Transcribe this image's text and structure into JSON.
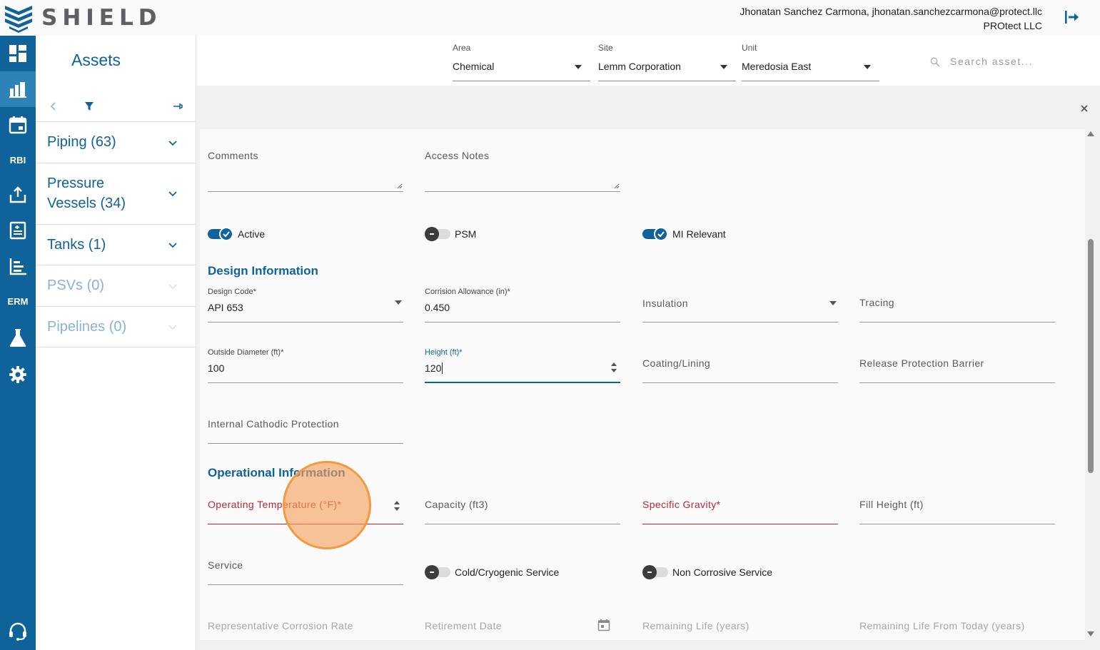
{
  "app": {
    "brand": "SHIELD"
  },
  "user": {
    "line1": "Jhonatan Sanchez Carmona, jhonatan.sanchezcarmona@protect.llc",
    "line2": "PROtect LLC"
  },
  "nav": {
    "items": [
      {
        "name": "dashboard-icon"
      },
      {
        "name": "assets-icon"
      },
      {
        "name": "calendar-icon"
      },
      {
        "name": "rbi",
        "text": "RBI"
      },
      {
        "name": "upload-icon"
      },
      {
        "name": "report-icon"
      },
      {
        "name": "chart-icon"
      },
      {
        "name": "erm",
        "text": "ERM"
      },
      {
        "name": "lab-flask-icon"
      },
      {
        "name": "gear-icon"
      },
      {
        "name": "support-headset-icon"
      }
    ]
  },
  "assets": {
    "title": "Assets",
    "categories": [
      {
        "label": "Piping (63)"
      },
      {
        "label": "Pressure\nVessels (34)"
      },
      {
        "label": "Tanks (1)"
      },
      {
        "label": "PSVs (0)"
      },
      {
        "label": "Pipelines (0)"
      }
    ]
  },
  "filters": {
    "area": {
      "label": "Area",
      "value": "Chemical"
    },
    "site": {
      "label": "Site",
      "value": "Lemm Corporation"
    },
    "unit": {
      "label": "Unit",
      "value": "Meredosia East"
    },
    "search_placeholder": "Search asset..."
  },
  "form": {
    "comments": {
      "label": "Comments"
    },
    "access_notes": {
      "label": "Access Notes"
    },
    "toggles": {
      "active": {
        "label": "Active",
        "on": true
      },
      "psm": {
        "label": "PSM",
        "on": false
      },
      "mi_relevant": {
        "label": "MI Relevant",
        "on": true
      },
      "cold_cryogenic": {
        "label": "Cold/Cryogenic Service",
        "on": false
      },
      "non_corrosive": {
        "label": "Non Corrosive Service",
        "on": false
      }
    },
    "design_title": "Design Information",
    "design_code": {
      "label": "Design Code*",
      "value": "API 653"
    },
    "corrosion_allowance": {
      "label": "Corrision Allowance (in)*",
      "value": "0.450"
    },
    "insulation": {
      "label": "Insulation"
    },
    "tracing": {
      "label": "Tracing"
    },
    "outside_diameter": {
      "label": "Outside Diameter (ft)*",
      "value": "100"
    },
    "height": {
      "label": "Height (ft)*",
      "value": "120"
    },
    "coating_lining": {
      "label": "Coating/Lining"
    },
    "release_barrier": {
      "label": "Release Protection Barrier"
    },
    "internal_cathodic": {
      "label": "Internal Cathodic Protection"
    },
    "operational_title": "Operational Information",
    "operating_temp": {
      "label": "Operating Temperature (°F)*"
    },
    "capacity": {
      "label": "Capacity (ft3)"
    },
    "specific_gravity": {
      "label": "Specific Gravity*"
    },
    "fill_height": {
      "label": "Fill Height (ft)"
    },
    "service": {
      "label": "Service"
    },
    "rep_corrosion_rate": {
      "label": "Representative Corrosion Rate"
    },
    "retirement_date": {
      "label": "Retirement Date"
    },
    "remaining_life": {
      "label": "Remaining Life (years)"
    },
    "remaining_life_today": {
      "label": "Remaining Life From Today (years)"
    }
  },
  "colors": {
    "brand_blue": "#10639a",
    "active_nav": "#2d83b8",
    "error_red": "#b42a3c",
    "click_marker": "#f29a3e"
  }
}
